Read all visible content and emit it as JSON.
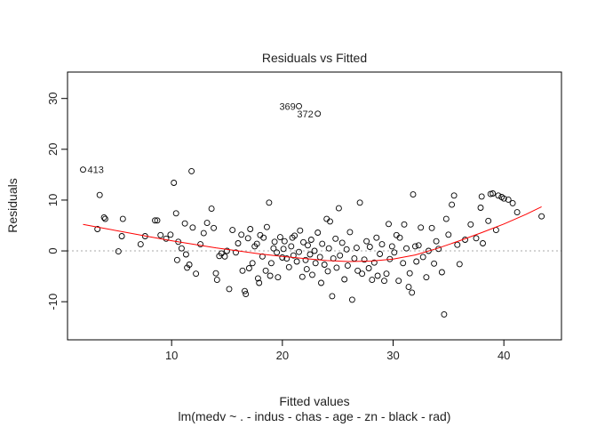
{
  "chart_data": {
    "type": "scatter",
    "title": "Residuals vs Fitted",
    "xlabel": "Fitted values",
    "ylabel": "Residuals",
    "subtitle": "lm(medv ~ . - indus - chas - age - zn - black - rad)",
    "xlim": [
      0.6,
      45.2
    ],
    "ylim": [
      -17.5,
      35.2
    ],
    "x_ticks": [
      10,
      20,
      30,
      40
    ],
    "y_ticks": [
      -10,
      0,
      10,
      20,
      30
    ],
    "x_tick_labels": [
      "10",
      "20",
      "30",
      "40"
    ],
    "y_tick_labels": [
      "-10",
      "0",
      "10",
      "20",
      "30"
    ],
    "reference_line": 0,
    "grid": false,
    "legend": "none",
    "colors": {
      "points": "#000000",
      "smoother": "#ff0000",
      "reference": "#aaaaaa"
    },
    "annotations": [
      {
        "text": "413",
        "x": 2.0,
        "y": 16.0,
        "side": "right"
      },
      {
        "text": "369",
        "x": 21.6,
        "y": 28.5,
        "side": "left"
      },
      {
        "text": "372",
        "x": 23.2,
        "y": 27.0,
        "side": "left"
      }
    ],
    "smoother": [
      [
        2.0,
        5.2
      ],
      [
        4.0,
        4.4
      ],
      [
        6.0,
        3.6
      ],
      [
        8.0,
        2.8
      ],
      [
        10.0,
        2.0
      ],
      [
        12.0,
        1.3
      ],
      [
        14.0,
        0.6
      ],
      [
        16.0,
        0.0
      ],
      [
        18.0,
        -0.6
      ],
      [
        20.0,
        -1.1
      ],
      [
        22.0,
        -1.5
      ],
      [
        24.0,
        -1.9
      ],
      [
        26.0,
        -2.1
      ],
      [
        28.0,
        -2.0
      ],
      [
        30.0,
        -1.6
      ],
      [
        32.0,
        -0.8
      ],
      [
        34.0,
        0.5
      ],
      [
        36.0,
        2.0
      ],
      [
        38.0,
        3.6
      ],
      [
        40.0,
        5.3
      ],
      [
        42.0,
        7.2
      ],
      [
        43.4,
        8.7
      ]
    ],
    "points": [
      [
        2.0,
        16.0
      ],
      [
        3.3,
        4.3
      ],
      [
        3.5,
        11.0
      ],
      [
        3.9,
        6.6
      ],
      [
        4.0,
        6.3
      ],
      [
        5.2,
        -0.1
      ],
      [
        5.6,
        6.3
      ],
      [
        5.5,
        2.9
      ],
      [
        7.2,
        1.3
      ],
      [
        7.6,
        2.9
      ],
      [
        8.5,
        6.0
      ],
      [
        8.7,
        6.0
      ],
      [
        9.0,
        3.1
      ],
      [
        9.5,
        2.4
      ],
      [
        9.9,
        3.2
      ],
      [
        10.2,
        13.4
      ],
      [
        10.4,
        7.4
      ],
      [
        10.5,
        -1.8
      ],
      [
        10.6,
        1.8
      ],
      [
        10.9,
        0.5
      ],
      [
        11.2,
        5.4
      ],
      [
        11.3,
        -0.7
      ],
      [
        11.4,
        -3.3
      ],
      [
        11.6,
        -2.7
      ],
      [
        11.8,
        15.7
      ],
      [
        11.9,
        4.6
      ],
      [
        12.2,
        -4.5
      ],
      [
        12.6,
        1.3
      ],
      [
        12.9,
        3.5
      ],
      [
        13.2,
        5.5
      ],
      [
        13.6,
        8.3
      ],
      [
        13.8,
        4.5
      ],
      [
        14.0,
        -4.4
      ],
      [
        14.1,
        -5.7
      ],
      [
        14.3,
        -1.0
      ],
      [
        14.5,
        -0.5
      ],
      [
        14.8,
        -1.1
      ],
      [
        15.0,
        0.0
      ],
      [
        15.2,
        -7.5
      ],
      [
        15.5,
        4.1
      ],
      [
        15.8,
        -0.3
      ],
      [
        16.0,
        1.5
      ],
      [
        16.3,
        3.2
      ],
      [
        16.4,
        -3.9
      ],
      [
        16.6,
        -7.9
      ],
      [
        16.7,
        -8.5
      ],
      [
        16.9,
        2.5
      ],
      [
        17.0,
        -3.4
      ],
      [
        17.1,
        4.3
      ],
      [
        17.3,
        -2.4
      ],
      [
        17.5,
        0.9
      ],
      [
        17.7,
        1.4
      ],
      [
        17.8,
        -5.4
      ],
      [
        17.9,
        -6.3
      ],
      [
        18.0,
        3.1
      ],
      [
        18.2,
        -1.1
      ],
      [
        18.3,
        2.6
      ],
      [
        18.5,
        -3.9
      ],
      [
        18.6,
        4.7
      ],
      [
        18.8,
        9.5
      ],
      [
        18.9,
        -4.9
      ],
      [
        19.0,
        -2.4
      ],
      [
        19.2,
        0.5
      ],
      [
        19.3,
        1.8
      ],
      [
        19.5,
        -0.3
      ],
      [
        19.6,
        -5.2
      ],
      [
        19.8,
        2.7
      ],
      [
        20.0,
        -1.3
      ],
      [
        20.1,
        0.4
      ],
      [
        20.2,
        1.9
      ],
      [
        20.4,
        -1.5
      ],
      [
        20.6,
        -3.2
      ],
      [
        20.8,
        0.9
      ],
      [
        20.9,
        2.6
      ],
      [
        21.0,
        -0.9
      ],
      [
        21.1,
        3.0
      ],
      [
        21.3,
        -2.1
      ],
      [
        21.5,
        28.5
      ],
      [
        21.5,
        -0.2
      ],
      [
        21.6,
        4.0
      ],
      [
        21.8,
        -5.1
      ],
      [
        21.9,
        1.7
      ],
      [
        22.1,
        -1.8
      ],
      [
        22.2,
        -3.6
      ],
      [
        22.3,
        1.1
      ],
      [
        22.5,
        -0.7
      ],
      [
        22.6,
        2.2
      ],
      [
        22.7,
        -4.7
      ],
      [
        22.9,
        0.0
      ],
      [
        23.0,
        -2.4
      ],
      [
        23.2,
        27.0
      ],
      [
        23.2,
        3.6
      ],
      [
        23.4,
        -1.2
      ],
      [
        23.5,
        -6.3
      ],
      [
        23.6,
        1.4
      ],
      [
        23.8,
        -2.7
      ],
      [
        24.0,
        6.3
      ],
      [
        24.1,
        -4.0
      ],
      [
        24.2,
        0.5
      ],
      [
        24.3,
        5.8
      ],
      [
        24.5,
        -8.9
      ],
      [
        24.6,
        -1.5
      ],
      [
        24.8,
        2.4
      ],
      [
        24.9,
        -3.3
      ],
      [
        25.1,
        8.4
      ],
      [
        25.2,
        -0.9
      ],
      [
        25.4,
        1.6
      ],
      [
        25.6,
        -5.6
      ],
      [
        25.8,
        0.3
      ],
      [
        25.9,
        -2.9
      ],
      [
        26.1,
        3.7
      ],
      [
        26.3,
        -9.6
      ],
      [
        26.5,
        -1.5
      ],
      [
        26.7,
        0.6
      ],
      [
        26.8,
        -3.9
      ],
      [
        27.0,
        9.5
      ],
      [
        27.2,
        -4.5
      ],
      [
        27.4,
        -1.7
      ],
      [
        27.6,
        1.9
      ],
      [
        27.8,
        -3.4
      ],
      [
        27.9,
        0.8
      ],
      [
        28.1,
        -5.7
      ],
      [
        28.3,
        -2.3
      ],
      [
        28.5,
        2.6
      ],
      [
        28.6,
        -4.9
      ],
      [
        28.8,
        -0.6
      ],
      [
        29.0,
        1.3
      ],
      [
        29.2,
        -5.9
      ],
      [
        29.4,
        -4.5
      ],
      [
        29.6,
        5.3
      ],
      [
        29.7,
        -1.6
      ],
      [
        29.9,
        0.9
      ],
      [
        30.1,
        -0.3
      ],
      [
        30.3,
        3.1
      ],
      [
        30.5,
        -5.9
      ],
      [
        30.6,
        2.6
      ],
      [
        30.9,
        -2.4
      ],
      [
        31.0,
        5.2
      ],
      [
        31.2,
        0.5
      ],
      [
        31.4,
        -7.1
      ],
      [
        31.5,
        -4.4
      ],
      [
        31.7,
        -8.2
      ],
      [
        31.8,
        11.1
      ],
      [
        32.0,
        0.9
      ],
      [
        32.1,
        -2.1
      ],
      [
        32.3,
        1.1
      ],
      [
        32.5,
        4.6
      ],
      [
        32.7,
        -1.2
      ],
      [
        33.0,
        -5.2
      ],
      [
        33.2,
        0.0
      ],
      [
        33.5,
        4.5
      ],
      [
        33.7,
        -2.5
      ],
      [
        33.9,
        1.9
      ],
      [
        34.1,
        0.4
      ],
      [
        34.4,
        -4.2
      ],
      [
        34.6,
        -12.5
      ],
      [
        34.8,
        6.3
      ],
      [
        35.0,
        3.2
      ],
      [
        35.3,
        9.1
      ],
      [
        35.5,
        10.9
      ],
      [
        35.8,
        1.2
      ],
      [
        36.0,
        -2.6
      ],
      [
        36.5,
        2.2
      ],
      [
        37.0,
        5.2
      ],
      [
        37.5,
        2.5
      ],
      [
        37.9,
        8.5
      ],
      [
        38.0,
        10.7
      ],
      [
        38.1,
        1.5
      ],
      [
        38.6,
        5.9
      ],
      [
        38.8,
        11.2
      ],
      [
        39.0,
        11.3
      ],
      [
        39.3,
        4.1
      ],
      [
        39.5,
        10.9
      ],
      [
        39.8,
        10.6
      ],
      [
        40.0,
        10.3
      ],
      [
        40.4,
        10.1
      ],
      [
        40.8,
        9.4
      ],
      [
        41.2,
        7.6
      ],
      [
        43.4,
        6.8
      ]
    ]
  }
}
